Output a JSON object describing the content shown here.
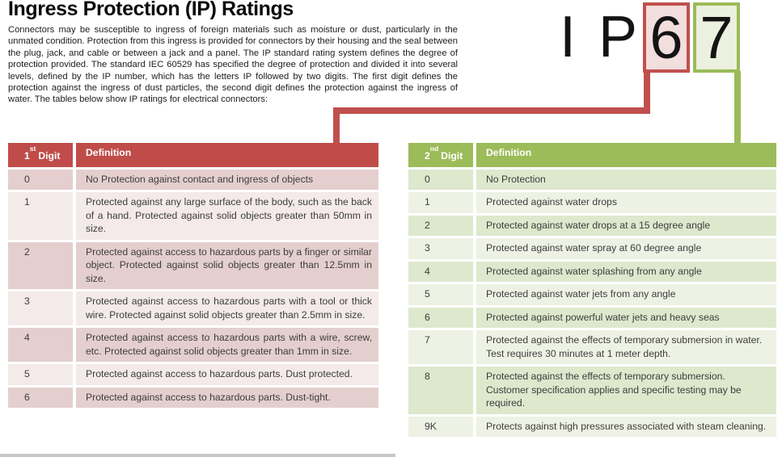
{
  "title": "Ingress Protection (IP) Ratings",
  "intro": "Connectors may be susceptible to ingress of foreign materials such as moisture or dust, particularly in the unmated condition. Protection from this ingress is provided for connectors by their housing and the seal between the plug, jack, and cable or between a jack and a panel. The IP standard rating system defines the degree of protection provided. The standard IEC 60529 has specified the degree of protection and divided it into several levels, defined by the IP number, which has the letters IP followed by two digits. The first digit defines the protection against the ingress of dust particles, the second digit defines the protection against the ingress of water. The tables below show IP ratings for electrical connectors:",
  "ip_graphic": {
    "prefix": "I P",
    "first_digit": "6",
    "second_digit": "7"
  },
  "theme": {
    "red_accent": "#c0504d",
    "red_band_dark": "#e4cfce",
    "red_band_light": "#f3eae9",
    "red_box_fill": "#f2dedd",
    "green_accent": "#9bbb59",
    "green_band_dark": "#dde8cd",
    "green_band_light": "#eef2e4",
    "green_box_fill": "#ebf1de"
  },
  "first_digit_table": {
    "header": {
      "num": "1",
      "sup": "st",
      "word": "Digit",
      "definition": "Definition"
    },
    "rows": [
      {
        "digit": "0",
        "definition": "No Protection against contact and ingress of objects"
      },
      {
        "digit": "1",
        "definition": "Protected against any large surface of the body, such as the back of a hand. Protected against solid objects greater than 50mm in size."
      },
      {
        "digit": "2",
        "definition": "Protected against access to hazardous parts by a finger or similar object. Protected against solid objects greater than 12.5mm in size."
      },
      {
        "digit": "3",
        "definition": "Protected against access to hazardous parts with a tool or thick wire. Protected against solid objects greater than 2.5mm in size."
      },
      {
        "digit": "4",
        "definition": "Protected against access to hazardous parts with a wire, screw, etc. Protected against solid objects greater than 1mm in size."
      },
      {
        "digit": "5",
        "definition": "Protected against access to hazardous parts. Dust protected."
      },
      {
        "digit": "6",
        "definition": "Protected against access to hazardous parts. Dust-tight."
      }
    ]
  },
  "second_digit_table": {
    "header": {
      "num": "2",
      "sup": "nd",
      "word": "Digit",
      "definition": "Definition"
    },
    "rows": [
      {
        "digit": "0",
        "definition": "No Protection"
      },
      {
        "digit": "1",
        "definition": "Protected against water drops"
      },
      {
        "digit": "2",
        "definition": "Protected against water drops at a 15 degree angle"
      },
      {
        "digit": "3",
        "definition": "Protected against water spray at 60 degree angle"
      },
      {
        "digit": "4",
        "definition": "Protected against water splashing from any angle"
      },
      {
        "digit": "5",
        "definition": "Protected against water jets from any angle"
      },
      {
        "digit": "6",
        "definition": "Protected against powerful water jets and heavy seas"
      },
      {
        "digit": "7",
        "definition": "Protected against the effects of temporary submersion in water. Test requires 30 minutes at 1 meter depth."
      },
      {
        "digit": "8",
        "definition": "Protected against the effects of temporary submersion. Customer specification applies and specific testing may be required."
      },
      {
        "digit": "9K",
        "definition": "Protects against high pressures associated with steam cleaning."
      }
    ]
  }
}
